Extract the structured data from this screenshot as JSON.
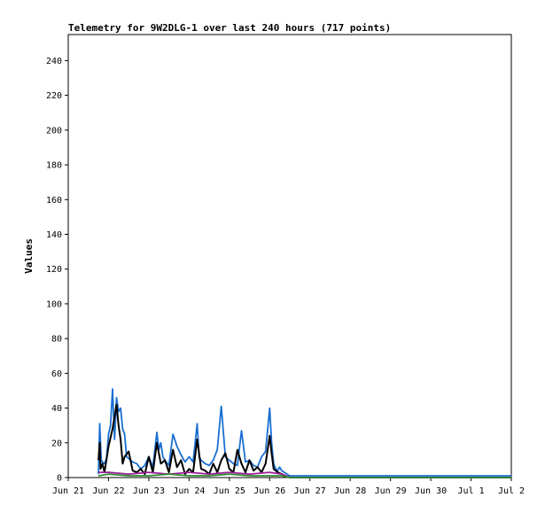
{
  "chart_data": {
    "type": "line",
    "title": "Telemetry for 9W2DLG-1 over last 240 hours (717 points)",
    "xlabel": "",
    "ylabel": "Values",
    "ylim": [
      0,
      255
    ],
    "y_ticks": [
      0,
      20,
      40,
      60,
      80,
      100,
      120,
      140,
      160,
      180,
      200,
      220,
      240
    ],
    "x_unit": "days since Jun 21",
    "xlim": [
      0,
      11
    ],
    "x_tick_labels": [
      "Jun 21",
      "Jun 22",
      "Jun 23",
      "Jun 24",
      "Jun 25",
      "Jun 26",
      "Jun 27",
      "Jun 28",
      "Jun 29",
      "Jun 30",
      "Jul 1",
      "Jul 2"
    ],
    "grid": false,
    "series": [
      {
        "name": "",
        "color": "#1a6fd1",
        "x": [
          0.75,
          0.78,
          0.82,
          0.85,
          0.9,
          0.95,
          1.0,
          1.05,
          1.1,
          1.15,
          1.2,
          1.25,
          1.3,
          1.35,
          1.4,
          1.45,
          1.5,
          1.55,
          1.6,
          1.7,
          1.8,
          1.9,
          2.0,
          2.1,
          2.2,
          2.25,
          2.3,
          2.35,
          2.4,
          2.5,
          2.6,
          2.7,
          2.8,
          2.9,
          3.0,
          3.1,
          3.2,
          3.25,
          3.3,
          3.4,
          3.5,
          3.6,
          3.7,
          3.8,
          3.9,
          4.0,
          4.1,
          4.2,
          4.3,
          4.4,
          4.5,
          4.6,
          4.7,
          4.8,
          4.9,
          5.0,
          5.05,
          5.1,
          5.15,
          5.2,
          5.25,
          5.3,
          5.5,
          6.0,
          7.0,
          8.0,
          8.5,
          9.0,
          10.0,
          10.5,
          11.0
        ],
        "values": [
          2,
          31,
          10,
          9,
          8,
          11,
          25,
          30,
          51,
          22,
          46,
          38,
          40,
          28,
          25,
          12,
          11,
          10,
          9,
          8,
          5,
          7,
          12,
          6,
          26,
          16,
          20,
          12,
          10,
          7,
          25,
          18,
          13,
          9,
          12,
          9,
          31,
          12,
          10,
          8,
          7,
          10,
          16,
          41,
          12,
          10,
          8,
          7,
          27,
          9,
          10,
          7,
          6,
          12,
          15,
          40,
          20,
          8,
          5,
          4,
          6,
          4,
          1,
          1,
          1,
          1,
          1,
          1,
          1,
          1,
          1
        ]
      },
      {
        "name": "",
        "color": "#000000",
        "x": [
          0.75,
          0.78,
          0.8,
          0.85,
          0.9,
          1.0,
          1.1,
          1.2,
          1.25,
          1.3,
          1.35,
          1.4,
          1.5,
          1.6,
          1.7,
          1.8,
          1.9,
          2.0,
          2.1,
          2.2,
          2.3,
          2.4,
          2.5,
          2.6,
          2.7,
          2.8,
          2.9,
          3.0,
          3.1,
          3.2,
          3.3,
          3.4,
          3.5,
          3.6,
          3.7,
          3.8,
          3.9,
          4.0,
          4.1,
          4.2,
          4.3,
          4.4,
          4.5,
          4.6,
          4.7,
          4.8,
          4.9,
          5.0,
          5.05,
          5.1,
          5.2,
          5.3,
          5.5,
          6.0,
          7.0,
          8.0,
          8.5,
          9.0,
          10.0,
          10.5,
          11.0
        ],
        "values": [
          10,
          20,
          5,
          8,
          3,
          18,
          28,
          42,
          30,
          22,
          8,
          12,
          15,
          4,
          3,
          5,
          2,
          12,
          3,
          20,
          8,
          10,
          3,
          16,
          6,
          10,
          2,
          5,
          3,
          22,
          5,
          4,
          2,
          8,
          3,
          10,
          14,
          5,
          3,
          16,
          8,
          3,
          10,
          4,
          6,
          3,
          8,
          24,
          14,
          5,
          3,
          2,
          0,
          0,
          0,
          0,
          0,
          0,
          0,
          0,
          0
        ]
      },
      {
        "name": "",
        "color": "#9b1e9b",
        "x": [
          0.75,
          1.0,
          1.5,
          2.0,
          2.5,
          3.0,
          3.5,
          4.0,
          4.5,
          5.0,
          5.3,
          5.5,
          11.0
        ],
        "values": [
          3,
          3,
          2,
          3,
          2,
          3,
          2,
          3,
          2,
          3,
          2,
          0,
          0
        ]
      },
      {
        "name": "",
        "color": "#2e8b2e",
        "x": [
          0.75,
          1.0,
          1.5,
          2.0,
          2.5,
          3.0,
          3.5,
          4.0,
          4.5,
          5.0,
          5.3,
          5.5,
          11.0
        ],
        "values": [
          1,
          2,
          1,
          1,
          2,
          1,
          1,
          2,
          1,
          1,
          1,
          0,
          0
        ]
      }
    ]
  }
}
